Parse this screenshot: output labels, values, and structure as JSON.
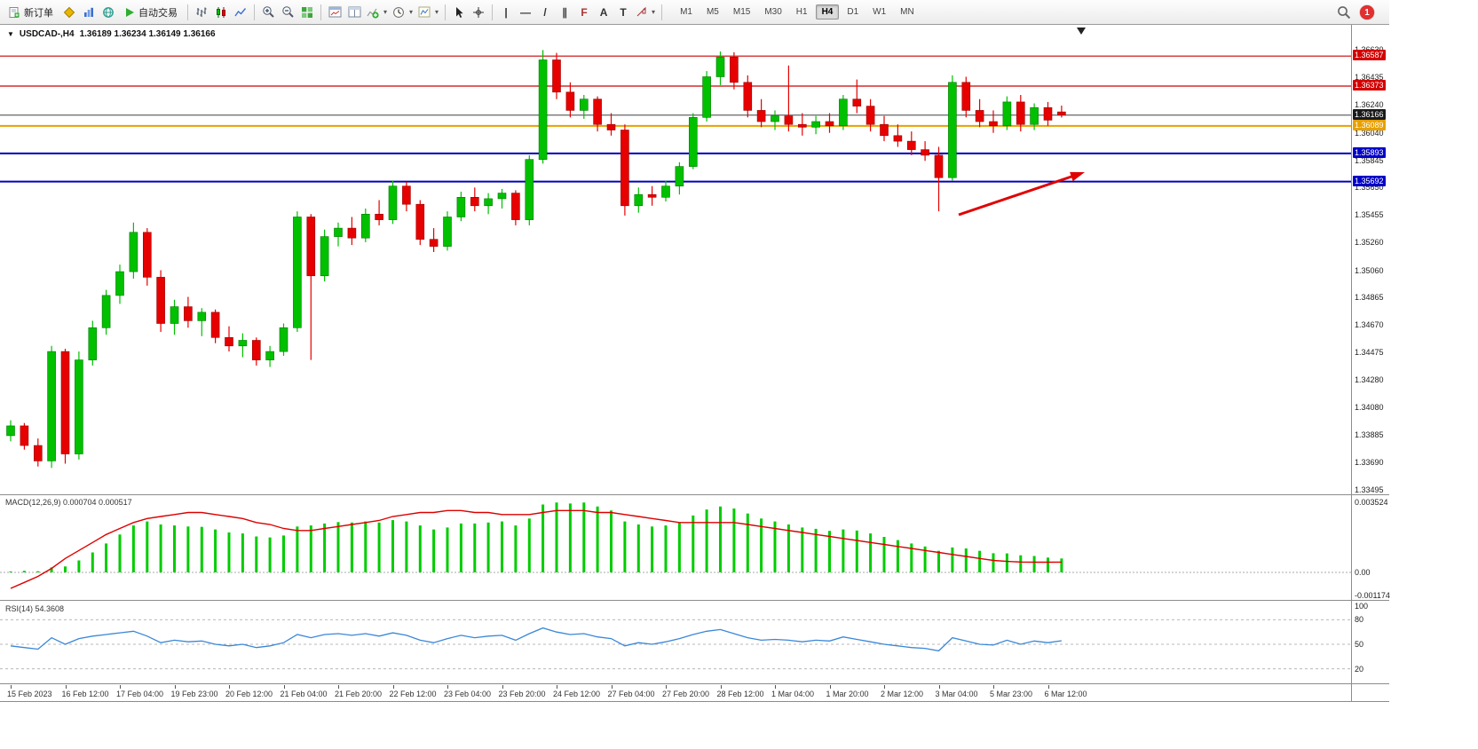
{
  "toolbar": {
    "new_order": "新订单",
    "auto_trading": "自动交易",
    "timeframes": [
      "M1",
      "M5",
      "M15",
      "M30",
      "H1",
      "H4",
      "D1",
      "W1",
      "MN"
    ],
    "active_timeframe": "H4",
    "notification_count": "1"
  },
  "icons": {
    "menu_triangle": "▼",
    "caret": "▾",
    "vertical_line": "|",
    "horizontal_line": "—",
    "trendline": "/",
    "channel": "∥",
    "fibonacci": "F",
    "text_tool": "A",
    "label_tool": "T"
  },
  "chart_header": {
    "symbol_timeframe": "USDCAD-,H4",
    "ohlc": "1.36189 1.36234 1.36149 1.36166"
  },
  "price_axis": {
    "labels": [
      "1.36630",
      "1.36435",
      "1.36240",
      "1.36040",
      "1.35845",
      "1.35650",
      "1.35455",
      "1.35260",
      "1.35060",
      "1.34865",
      "1.34670",
      "1.34475",
      "1.34280",
      "1.34080",
      "1.33885",
      "1.33690",
      "1.33495"
    ],
    "badges": [
      {
        "price": "1.36587",
        "color": "#d40000"
      },
      {
        "price": "1.36373",
        "color": "#d40000"
      },
      {
        "price": "1.36166",
        "color": "#1a1a1a"
      },
      {
        "price": "1.36089",
        "color": "#e8a000"
      },
      {
        "price": "1.35893",
        "color": "#0000c8"
      },
      {
        "price": "1.35692",
        "color": "#0000c8"
      }
    ]
  },
  "hlines": [
    {
      "price": 1.36587,
      "color": "#cc0000",
      "width": 1.2
    },
    {
      "price": 1.36373,
      "color": "#cc0000",
      "width": 1.2
    },
    {
      "price": 1.36166,
      "color": "#404040",
      "width": 1
    },
    {
      "price": 1.36089,
      "color": "#e8a000",
      "width": 2
    },
    {
      "price": 1.35893,
      "color": "#0000bb",
      "width": 2
    },
    {
      "price": 1.35692,
      "color": "#0000bb",
      "width": 2
    }
  ],
  "chart_data": [
    {
      "type": "candlestick",
      "title": "USDCAD- H4",
      "label_every_bars": 4,
      "price_range": [
        1.3345,
        1.3681
      ],
      "up_color": "#00c000",
      "down_color": "#e60000",
      "x_labels": [
        "15 Feb 2023",
        "16 Feb 12:00",
        "17 Feb 04:00",
        "19 Feb 23:00",
        "20 Feb 12:00",
        "21 Feb 04:00",
        "21 Feb 20:00",
        "22 Feb 12:00",
        "23 Feb 04:00",
        "23 Feb 20:00",
        "24 Feb 12:00",
        "27 Feb 04:00",
        "27 Feb 20:00",
        "28 Feb 12:00",
        "1 Mar 04:00",
        "1 Mar 20:00",
        "2 Mar 12:00",
        "3 Mar 04:00",
        "5 Mar 23:00",
        "6 Mar 12:00"
      ],
      "candles": [
        [
          1.3388,
          1.3399,
          1.3384,
          1.3395
        ],
        [
          1.3395,
          1.3397,
          1.3378,
          1.3381
        ],
        [
          1.3381,
          1.3386,
          1.3366,
          1.337
        ],
        [
          1.337,
          1.3452,
          1.3365,
          1.3448
        ],
        [
          1.3448,
          1.345,
          1.3368,
          1.3375
        ],
        [
          1.3375,
          1.3448,
          1.3371,
          1.3442
        ],
        [
          1.3442,
          1.347,
          1.3438,
          1.3465
        ],
        [
          1.3465,
          1.3492,
          1.346,
          1.3488
        ],
        [
          1.3488,
          1.351,
          1.3482,
          1.3505
        ],
        [
          1.3505,
          1.354,
          1.35,
          1.3533
        ],
        [
          1.3533,
          1.3536,
          1.3495,
          1.3501
        ],
        [
          1.3501,
          1.3506,
          1.3462,
          1.3468
        ],
        [
          1.3468,
          1.3485,
          1.346,
          1.348
        ],
        [
          1.348,
          1.3487,
          1.3465,
          1.347
        ],
        [
          1.347,
          1.3479,
          1.3459,
          1.3476
        ],
        [
          1.3476,
          1.3478,
          1.3454,
          1.3458
        ],
        [
          1.3458,
          1.3466,
          1.3448,
          1.3452
        ],
        [
          1.3452,
          1.3461,
          1.3444,
          1.3456
        ],
        [
          1.3456,
          1.3458,
          1.3438,
          1.3442
        ],
        [
          1.3442,
          1.3452,
          1.3437,
          1.3448
        ],
        [
          1.3448,
          1.3468,
          1.3445,
          1.3465
        ],
        [
          1.3465,
          1.3548,
          1.3462,
          1.3544
        ],
        [
          1.3544,
          1.3546,
          1.3442,
          1.3502
        ],
        [
          1.3502,
          1.3535,
          1.3498,
          1.353
        ],
        [
          1.353,
          1.354,
          1.3523,
          1.3536
        ],
        [
          1.3536,
          1.3544,
          1.3524,
          1.3529
        ],
        [
          1.3529,
          1.355,
          1.3526,
          1.3546
        ],
        [
          1.3546,
          1.3556,
          1.3538,
          1.3542
        ],
        [
          1.3542,
          1.357,
          1.3539,
          1.3566
        ],
        [
          1.3566,
          1.3569,
          1.3548,
          1.3553
        ],
        [
          1.3553,
          1.3556,
          1.3524,
          1.3528
        ],
        [
          1.3528,
          1.3536,
          1.3519,
          1.3523
        ],
        [
          1.3523,
          1.3548,
          1.352,
          1.3544
        ],
        [
          1.3544,
          1.3562,
          1.3541,
          1.3558
        ],
        [
          1.3558,
          1.3565,
          1.3548,
          1.3552
        ],
        [
          1.3552,
          1.3561,
          1.3546,
          1.3557
        ],
        [
          1.3557,
          1.3564,
          1.355,
          1.3561
        ],
        [
          1.3561,
          1.3563,
          1.3538,
          1.3542
        ],
        [
          1.3542,
          1.3588,
          1.3538,
          1.3585
        ],
        [
          1.3585,
          1.3663,
          1.3582,
          1.3656
        ],
        [
          1.3656,
          1.3661,
          1.3628,
          1.3633
        ],
        [
          1.3633,
          1.364,
          1.3615,
          1.362
        ],
        [
          1.362,
          1.3631,
          1.3614,
          1.3628
        ],
        [
          1.3628,
          1.363,
          1.3605,
          1.361
        ],
        [
          1.361,
          1.3618,
          1.3602,
          1.3606
        ],
        [
          1.3606,
          1.361,
          1.3545,
          1.3552
        ],
        [
          1.3552,
          1.3565,
          1.3547,
          1.356
        ],
        [
          1.356,
          1.3566,
          1.3552,
          1.3558
        ],
        [
          1.3558,
          1.357,
          1.3555,
          1.3566
        ],
        [
          1.3566,
          1.3583,
          1.356,
          1.358
        ],
        [
          1.358,
          1.3618,
          1.3578,
          1.3615
        ],
        [
          1.3615,
          1.3648,
          1.3612,
          1.3644
        ],
        [
          1.3644,
          1.3662,
          1.3638,
          1.3658
        ],
        [
          1.3658,
          1.36615,
          1.3635,
          1.364
        ],
        [
          1.364,
          1.3645,
          1.3615,
          1.362
        ],
        [
          1.362,
          1.3628,
          1.3608,
          1.3612
        ],
        [
          1.3612,
          1.362,
          1.3606,
          1.3616
        ],
        [
          1.3616,
          1.3652,
          1.3605,
          1.361
        ],
        [
          1.361,
          1.3618,
          1.3602,
          1.3608
        ],
        [
          1.3608,
          1.3616,
          1.3603,
          1.3612
        ],
        [
          1.3612,
          1.3618,
          1.3604,
          1.3609
        ],
        [
          1.3609,
          1.3631,
          1.3606,
          1.3628
        ],
        [
          1.3628,
          1.3642,
          1.3618,
          1.3623
        ],
        [
          1.3623,
          1.3628,
          1.3605,
          1.361
        ],
        [
          1.361,
          1.3616,
          1.3598,
          1.3602
        ],
        [
          1.3602,
          1.361,
          1.3594,
          1.3598
        ],
        [
          1.3598,
          1.3605,
          1.3588,
          1.3592
        ],
        [
          1.3592,
          1.3598,
          1.3584,
          1.3588
        ],
        [
          1.3588,
          1.3594,
          1.3548,
          1.3572
        ],
        [
          1.3572,
          1.3645,
          1.357,
          1.364
        ],
        [
          1.364,
          1.3644,
          1.3615,
          1.362
        ],
        [
          1.362,
          1.3628,
          1.3608,
          1.3612
        ],
        [
          1.3612,
          1.362,
          1.3604,
          1.3609
        ],
        [
          1.3609,
          1.363,
          1.3606,
          1.3626
        ],
        [
          1.3626,
          1.3631,
          1.3605,
          1.361
        ],
        [
          1.361,
          1.3625,
          1.3606,
          1.3622
        ],
        [
          1.3622,
          1.3626,
          1.3609,
          1.3613
        ],
        [
          1.36189,
          1.36234,
          1.36149,
          1.36166
        ]
      ]
    },
    {
      "type": "bar",
      "name": "MACD(12,26,9)",
      "label": "MACD(12,26,9) 0.000704 0.000517",
      "bar_color": "#00cc00",
      "line_color": "#dd0000",
      "scale_labels": [
        "0.003524",
        "0.00",
        "-0.001174"
      ],
      "range": [
        -0.001174,
        0.003524
      ],
      "values": [
        5e-05,
        8e-05,
        6e-05,
        0.00025,
        0.0003,
        0.0006,
        0.001,
        0.00145,
        0.0019,
        0.00235,
        0.00255,
        0.0024,
        0.00235,
        0.0023,
        0.00228,
        0.00215,
        0.002,
        0.00195,
        0.0018,
        0.00175,
        0.00185,
        0.0023,
        0.00235,
        0.00245,
        0.00252,
        0.0025,
        0.00255,
        0.0025,
        0.00262,
        0.00255,
        0.00235,
        0.00215,
        0.00225,
        0.00245,
        0.00245,
        0.0025,
        0.00255,
        0.00235,
        0.0027,
        0.0034,
        0.0035,
        0.00345,
        0.0035,
        0.0033,
        0.0031,
        0.00255,
        0.0024,
        0.0023,
        0.00235,
        0.0025,
        0.00285,
        0.00315,
        0.0033,
        0.0032,
        0.00295,
        0.0027,
        0.00255,
        0.0024,
        0.00225,
        0.00218,
        0.00208,
        0.00215,
        0.0021,
        0.00195,
        0.00178,
        0.00162,
        0.00145,
        0.0013,
        0.00108,
        0.00125,
        0.0012,
        0.00108,
        0.00096,
        0.00095,
        0.00086,
        0.00082,
        0.00074,
        0.0007
      ],
      "signal_line": [
        -0.0008,
        -0.0005,
        -0.0002,
        0.0002,
        0.0007,
        0.0011,
        0.0015,
        0.0019,
        0.0022,
        0.0025,
        0.0027,
        0.0028,
        0.0029,
        0.003,
        0.003,
        0.0029,
        0.0028,
        0.0027,
        0.0025,
        0.0024,
        0.0022,
        0.0021,
        0.0021,
        0.0022,
        0.0023,
        0.0024,
        0.0025,
        0.0026,
        0.0028,
        0.0029,
        0.003,
        0.003,
        0.0031,
        0.0031,
        0.003,
        0.003,
        0.0029,
        0.0029,
        0.0029,
        0.003,
        0.0031,
        0.0031,
        0.0031,
        0.003,
        0.003,
        0.0029,
        0.0028,
        0.0027,
        0.0026,
        0.0025,
        0.0025,
        0.0025,
        0.0025,
        0.0025,
        0.0024,
        0.0023,
        0.0022,
        0.0021,
        0.002,
        0.0019,
        0.0018,
        0.0017,
        0.0016,
        0.0015,
        0.0014,
        0.0013,
        0.0012,
        0.0011,
        0.001,
        0.0009,
        0.0008,
        0.0007,
        0.0006,
        0.00055,
        0.00052,
        0.00051,
        0.00051,
        0.000517
      ]
    },
    {
      "type": "line",
      "name": "RSI(14)",
      "label": "RSI(14) 54.3608",
      "line_color": "#3a87d8",
      "scale_labels": [
        "100",
        "80",
        "50",
        "20"
      ],
      "levels": [
        80,
        50,
        20
      ],
      "range": [
        0,
        100
      ],
      "values": [
        48,
        46,
        44,
        58,
        50,
        57,
        60,
        62,
        64,
        66,
        60,
        52,
        55,
        53,
        54,
        50,
        48,
        50,
        46,
        48,
        52,
        62,
        58,
        62,
        63,
        61,
        63,
        60,
        64,
        61,
        55,
        52,
        57,
        61,
        58,
        60,
        61,
        55,
        63,
        70,
        65,
        62,
        63,
        59,
        57,
        48,
        52,
        50,
        53,
        57,
        62,
        66,
        68,
        63,
        58,
        55,
        56,
        55,
        53,
        55,
        54,
        59,
        56,
        53,
        50,
        48,
        46,
        45,
        42,
        58,
        54,
        50,
        49,
        55,
        50,
        54,
        52,
        54.36
      ]
    }
  ]
}
